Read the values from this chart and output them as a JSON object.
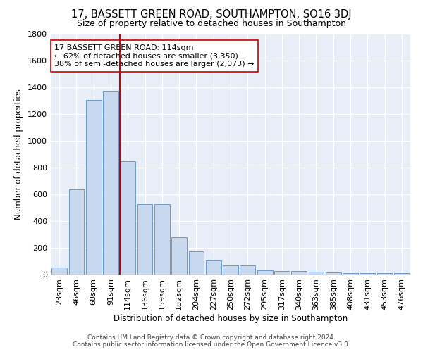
{
  "title": "17, BASSETT GREEN ROAD, SOUTHAMPTON, SO16 3DJ",
  "subtitle": "Size of property relative to detached houses in Southampton",
  "xlabel": "Distribution of detached houses by size in Southampton",
  "ylabel": "Number of detached properties",
  "footer_line1": "Contains HM Land Registry data © Crown copyright and database right 2024.",
  "footer_line2": "Contains public sector information licensed under the Open Government Licence v3.0.",
  "annotation_line1": "17 BASSETT GREEN ROAD: 114sqm",
  "annotation_line2": "← 62% of detached houses are smaller (3,350)",
  "annotation_line3": "38% of semi-detached houses are larger (2,073) →",
  "categories": [
    "23sqm",
    "46sqm",
    "68sqm",
    "91sqm",
    "114sqm",
    "136sqm",
    "159sqm",
    "182sqm",
    "204sqm",
    "227sqm",
    "250sqm",
    "272sqm",
    "295sqm",
    "317sqm",
    "340sqm",
    "363sqm",
    "385sqm",
    "408sqm",
    "431sqm",
    "453sqm",
    "476sqm"
  ],
  "values": [
    55,
    635,
    1305,
    1370,
    845,
    525,
    525,
    280,
    175,
    105,
    68,
    68,
    30,
    28,
    25,
    20,
    15,
    8,
    8,
    8,
    8
  ],
  "bar_color": "#c8d8ee",
  "bar_edge_color": "#5b8fc9",
  "marker_bar_index": 4,
  "marker_color": "#cc0000",
  "ylim": [
    0,
    1800
  ],
  "yticks": [
    0,
    200,
    400,
    600,
    800,
    1000,
    1200,
    1400,
    1600,
    1800
  ],
  "bg_color": "#e8eef8",
  "grid_color": "#ffffff",
  "fig_bg_color": "#ffffff",
  "title_fontsize": 10.5,
  "subtitle_fontsize": 9,
  "axis_label_fontsize": 8.5,
  "tick_fontsize": 8,
  "footer_fontsize": 6.5,
  "annotation_fontsize": 8,
  "annotation_box_color": "#ffffff",
  "annotation_box_edge": "#cc0000"
}
